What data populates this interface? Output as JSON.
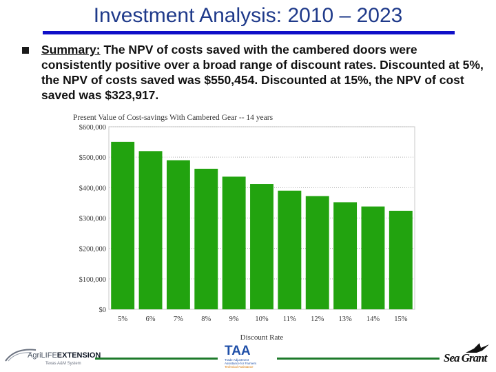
{
  "slide": {
    "title": "Investment  Analysis: 2010 – 2023",
    "summary_lead": "Summary:",
    "summary_text": "  The NPV of costs saved with the cambered doors were consistently positive over a broad range of discount rates. Discounted at 5%, the NPV of costs saved was $550,454. Discounted at 15%, the NPV of cost saved was $323,917.",
    "accent_color": "#1010c8",
    "title_color": "#1f3a8a"
  },
  "chart_data": {
    "type": "bar",
    "title": "Present Value of Cost-savings With Cambered Gear -- 14 years",
    "xlabel": "Discount Rate",
    "ylabel": "",
    "categories": [
      "5%",
      "6%",
      "7%",
      "8%",
      "9%",
      "10%",
      "11%",
      "12%",
      "13%",
      "14%",
      "15%"
    ],
    "values": [
      550454,
      520000,
      490000,
      462000,
      436000,
      412000,
      390000,
      372000,
      352000,
      338000,
      323917
    ],
    "ylim": [
      0,
      600000
    ],
    "yticks": [
      0,
      100000,
      200000,
      300000,
      400000,
      500000,
      600000
    ],
    "ytick_labels": [
      "$0",
      "$100,000",
      "$200,000",
      "$300,000",
      "$400,000",
      "$500,000",
      "$600,000"
    ],
    "bar_color": "#22a30f",
    "grid": true,
    "legend": "none"
  },
  "footer": {
    "left_logo_text_a": "AgriLIFE",
    "left_logo_text_b": "EXTENSION",
    "left_logo_sub": "Texas A&M System",
    "center_logo_text": "TAA",
    "center_logo_sub_1": "Trade Adjustment",
    "center_logo_sub_2": "Assistance for Farmers",
    "center_logo_sub_3": "Technical Assistance",
    "right_logo_text": "Sea Grant",
    "rule_color": "#1d7a2a"
  }
}
